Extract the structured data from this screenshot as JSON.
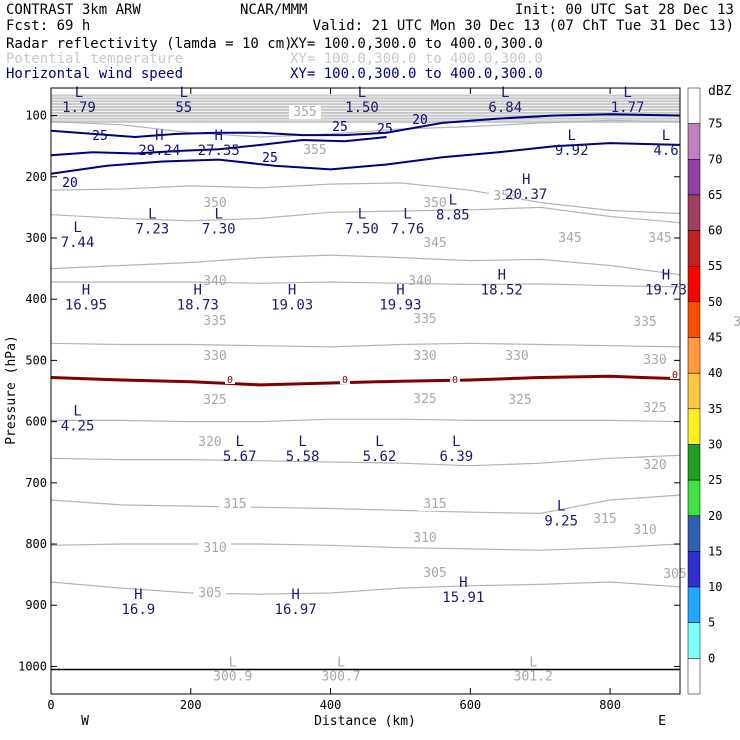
{
  "header": {
    "line1_left": "CONTRAST  3km ARW",
    "line1_mid": "NCAR/MMM",
    "line1_right": "Init: 00 UTC Sat 28 Dec 13",
    "line2_left": "Fcst:   69 h",
    "line2_right": "Valid: 21 UTC Mon 30 Dec 13 (07 ChT Tue 31 Dec 13)",
    "fields": [
      {
        "name": "Radar reflectivity (lamda = 10 cm)",
        "xy": "XY= 100.0,300.0 to 400.0,300.0",
        "color": "#000000"
      },
      {
        "name": "Potential temperature",
        "xy": "XY= 100.0,300.0 to 400.0,300.0",
        "color": "#c8c8c8"
      },
      {
        "name": "Horizontal wind speed",
        "xy": "XY= 100.0,300.0 to 400.0,300.0",
        "color": "#000080"
      }
    ]
  },
  "colors": {
    "theta": "#b4b4b4",
    "theta_label": "#a8a8a8",
    "wind": "#000080",
    "zero_wind": "#800000",
    "hilo": "#1a1a70",
    "axis": "#000000"
  },
  "chart_data": {
    "type": "cross-section",
    "xlabel": "Distance (km)",
    "ylabel": "Pressure (hPa)",
    "xlim": [
      0,
      900
    ],
    "ylim": [
      1045,
      55
    ],
    "x_ticks": [
      0,
      200,
      400,
      600,
      800
    ],
    "y_ticks": [
      100,
      200,
      300,
      400,
      500,
      600,
      700,
      800,
      900,
      1000
    ],
    "x_ends": {
      "left": "W",
      "right": "E"
    },
    "theta_contours": [
      {
        "label": "355",
        "points": [
          [
            0,
            110
          ],
          [
            100,
            115
          ],
          [
            200,
            128
          ],
          [
            300,
            135
          ],
          [
            400,
            130
          ],
          [
            500,
            122
          ],
          [
            600,
            118
          ],
          [
            700,
            112
          ],
          [
            800,
            108
          ],
          [
            900,
            110
          ]
        ],
        "labels_at": [
          [
            305,
            114
          ],
          [
            315,
            152
          ]
        ]
      },
      {
        "label": "350",
        "points": [
          [
            0,
            222
          ],
          [
            100,
            220
          ],
          [
            200,
            215
          ],
          [
            300,
            218
          ],
          [
            400,
            212
          ],
          [
            500,
            210
          ],
          [
            600,
            222
          ],
          [
            700,
            242
          ],
          [
            800,
            255
          ],
          [
            900,
            260
          ]
        ],
        "labels_at": [
          [
            215,
            205
          ],
          [
            435,
            205
          ],
          [
            505,
            198
          ]
        ]
      },
      {
        "label": "345",
        "points": [
          [
            0,
            262
          ],
          [
            100,
            268
          ],
          [
            200,
            272
          ],
          [
            300,
            268
          ],
          [
            400,
            258
          ],
          [
            500,
            256
          ],
          [
            600,
            254
          ],
          [
            700,
            250
          ],
          [
            800,
            265
          ],
          [
            900,
            275
          ]
        ],
        "labels_at": [
          [
            435,
            245
          ],
          [
            570,
            240
          ],
          [
            660,
            240
          ]
        ]
      },
      {
        "label": "340",
        "points": [
          [
            0,
            350
          ],
          [
            100,
            345
          ],
          [
            200,
            340
          ],
          [
            300,
            332
          ],
          [
            400,
            328
          ],
          [
            500,
            332
          ],
          [
            600,
            337
          ],
          [
            700,
            335
          ],
          [
            800,
            345
          ],
          [
            900,
            360
          ]
        ],
        "labels_at": [
          [
            215,
            283
          ],
          [
            420,
            283
          ]
        ]
      },
      {
        "label": "335",
        "points": [
          [
            0,
            372
          ],
          [
            100,
            372
          ],
          [
            200,
            372
          ],
          [
            300,
            374
          ],
          [
            400,
            372
          ],
          [
            500,
            374
          ],
          [
            600,
            376
          ],
          [
            700,
            375
          ],
          [
            800,
            378
          ],
          [
            900,
            380
          ]
        ],
        "labels_at": [
          [
            215,
            323
          ],
          [
            425,
            321
          ],
          [
            645,
            324
          ],
          [
            745,
            324
          ]
        ]
      },
      {
        "label": "330",
        "points": [
          [
            0,
            472
          ],
          [
            100,
            474
          ],
          [
            200,
            474
          ],
          [
            300,
            476
          ],
          [
            400,
            478
          ],
          [
            500,
            474
          ],
          [
            600,
            472
          ],
          [
            700,
            474
          ],
          [
            800,
            476
          ],
          [
            900,
            478
          ]
        ],
        "labels_at": [
          [
            215,
            358
          ],
          [
            425,
            358
          ],
          [
            517,
            358
          ],
          [
            655,
            362
          ]
        ]
      },
      {
        "label": "325",
        "points": [
          [
            0,
            598
          ],
          [
            100,
            598
          ],
          [
            200,
            600
          ],
          [
            300,
            600
          ],
          [
            400,
            596
          ],
          [
            500,
            596
          ],
          [
            600,
            598
          ],
          [
            700,
            598
          ],
          [
            800,
            598
          ],
          [
            900,
            600
          ]
        ],
        "labels_at": [
          [
            215,
            402
          ],
          [
            425,
            401
          ],
          [
            520,
            402
          ],
          [
            655,
            410
          ]
        ]
      },
      {
        "label": "320",
        "points": [
          [
            0,
            660
          ],
          [
            100,
            662
          ],
          [
            200,
            662
          ],
          [
            300,
            664
          ],
          [
            400,
            666
          ],
          [
            500,
            668
          ],
          [
            600,
            672
          ],
          [
            700,
            668
          ],
          [
            800,
            660
          ],
          [
            900,
            655
          ]
        ],
        "labels_at": [
          [
            210,
            444
          ],
          [
            655,
            467
          ],
          [
            845,
            455
          ]
        ]
      },
      {
        "label": "315",
        "points": [
          [
            0,
            728
          ],
          [
            100,
            736
          ],
          [
            200,
            738
          ],
          [
            300,
            740
          ],
          [
            400,
            742
          ],
          [
            500,
            745
          ],
          [
            600,
            748
          ],
          [
            700,
            750
          ],
          [
            800,
            728
          ],
          [
            900,
            720
          ]
        ],
        "labels_at": [
          [
            235,
            506
          ],
          [
            435,
            506
          ],
          [
            605,
            521
          ],
          [
            775,
            492
          ]
        ]
      },
      {
        "label": "310",
        "points": [
          [
            0,
            802
          ],
          [
            100,
            800
          ],
          [
            200,
            800
          ],
          [
            300,
            800
          ],
          [
            400,
            802
          ],
          [
            500,
            806
          ],
          [
            600,
            808
          ],
          [
            700,
            810
          ],
          [
            800,
            806
          ],
          [
            900,
            800
          ]
        ],
        "labels_at": [
          [
            215,
            550
          ],
          [
            425,
            540
          ],
          [
            645,
            532
          ],
          [
            765,
            525
          ]
        ]
      },
      {
        "label": "305",
        "points": [
          [
            0,
            862
          ],
          [
            100,
            872
          ],
          [
            200,
            880
          ],
          [
            300,
            882
          ],
          [
            400,
            880
          ],
          [
            500,
            872
          ],
          [
            600,
            868
          ],
          [
            700,
            866
          ],
          [
            800,
            862
          ],
          [
            900,
            870
          ]
        ],
        "labels_at": [
          [
            210,
            595
          ],
          [
            435,
            575
          ],
          [
            675,
            576
          ],
          [
            785,
            578
          ]
        ]
      }
    ],
    "zero_wind": {
      "label": "0",
      "points": [
        [
          0,
          528
        ],
        [
          100,
          532
        ],
        [
          200,
          535
        ],
        [
          300,
          540
        ],
        [
          400,
          537
        ],
        [
          500,
          534
        ],
        [
          600,
          532
        ],
        [
          700,
          528
        ],
        [
          800,
          526
        ],
        [
          900,
          530
        ]
      ],
      "labels_at": [
        [
          230,
          380
        ],
        [
          345,
          380
        ],
        [
          455,
          380
        ],
        [
          675,
          375
        ]
      ]
    },
    "wind_contours": [
      {
        "label": "20",
        "points": [
          [
            0,
            195
          ],
          [
            80,
            182
          ],
          [
            160,
            175
          ],
          [
            240,
            172
          ],
          [
            320,
            182
          ],
          [
            400,
            188
          ],
          [
            480,
            180
          ],
          [
            560,
            168
          ],
          [
            640,
            160
          ],
          [
            720,
            150
          ],
          [
            800,
            145
          ],
          [
            900,
            148
          ]
        ],
        "labels_at": [
          [
            70,
            187
          ],
          [
            420,
            124
          ]
        ]
      },
      {
        "label": "25",
        "points": [
          [
            0,
            165
          ],
          [
            60,
            160
          ],
          [
            120,
            162
          ],
          [
            180,
            158
          ],
          [
            240,
            155
          ],
          [
            300,
            148
          ],
          [
            360,
            140
          ],
          [
            420,
            142
          ],
          [
            480,
            135
          ]
        ],
        "labels_at": [
          [
            100,
            140
          ],
          [
            270,
            162
          ],
          [
            340,
            131
          ],
          [
            385,
            133
          ]
        ]
      },
      {
        "label": "",
        "points": [
          [
            0,
            125
          ],
          [
            60,
            130
          ],
          [
            120,
            135
          ],
          [
            180,
            130
          ],
          [
            240,
            128
          ],
          [
            300,
            128
          ],
          [
            360,
            132
          ],
          [
            420,
            132
          ],
          [
            480,
            128
          ],
          [
            560,
            112
          ],
          [
            640,
            105
          ],
          [
            720,
            100
          ],
          [
            800,
            98
          ],
          [
            900,
            100
          ]
        ],
        "labels_at": []
      }
    ],
    "reflectivity_band": {
      "top_hPa": 65,
      "bottom_hPa": 112
    },
    "wind_extrema": [
      {
        "type": "L",
        "value": "1.79",
        "x": 40,
        "p": 70
      },
      {
        "type": "L",
        "value": "55",
        "x": 190,
        "p": 70
      },
      {
        "type": "L",
        "value": "1.50",
        "x": 445,
        "p": 70
      },
      {
        "type": "L",
        "value": "6.84",
        "x": 650,
        "p": 70
      },
      {
        "type": "L",
        "value": "1.77",
        "x": 825,
        "p": 70
      },
      {
        "type": "H",
        "value": "29.24",
        "x": 155,
        "p": 140
      },
      {
        "type": "H",
        "value": "27.35",
        "x": 240,
        "p": 140
      },
      {
        "type": "L",
        "value": "9.92",
        "x": 745,
        "p": 140
      },
      {
        "type": "L",
        "value": "4.6",
        "x": 880,
        "p": 140
      },
      {
        "type": "H",
        "value": "20.37",
        "x": 680,
        "p": 212
      },
      {
        "type": "L",
        "value": "8.85",
        "x": 575,
        "p": 245
      },
      {
        "type": "L",
        "value": "7.23",
        "x": 145,
        "p": 268
      },
      {
        "type": "L",
        "value": "7.30",
        "x": 240,
        "p": 268
      },
      {
        "type": "L",
        "value": "7.50",
        "x": 445,
        "p": 268
      },
      {
        "type": "L",
        "value": "7.76",
        "x": 510,
        "p": 268
      },
      {
        "type": "L",
        "value": "7.44",
        "x": 38,
        "p": 290
      },
      {
        "type": "H",
        "value": "18.52",
        "x": 645,
        "p": 368
      },
      {
        "type": "H",
        "value": "19.73",
        "x": 880,
        "p": 368
      },
      {
        "type": "H",
        "value": "16.95",
        "x": 50,
        "p": 392
      },
      {
        "type": "H",
        "value": "18.73",
        "x": 210,
        "p": 392
      },
      {
        "type": "H",
        "value": "19.03",
        "x": 345,
        "p": 392
      },
      {
        "type": "H",
        "value": "19.93",
        "x": 500,
        "p": 392
      },
      {
        "type": "L",
        "value": "4.25",
        "x": 38,
        "p": 590
      },
      {
        "type": "L",
        "value": "5.67",
        "x": 270,
        "p": 640
      },
      {
        "type": "L",
        "value": "5.58",
        "x": 360,
        "p": 640
      },
      {
        "type": "L",
        "value": "5.62",
        "x": 470,
        "p": 640
      },
      {
        "type": "L",
        "value": "6.39",
        "x": 580,
        "p": 640
      },
      {
        "type": "L",
        "value": "9.25",
        "x": 730,
        "p": 745
      },
      {
        "type": "H",
        "value": "15.91",
        "x": 590,
        "p": 870
      },
      {
        "type": "H",
        "value": "16.9",
        "x": 125,
        "p": 890
      },
      {
        "type": "H",
        "value": "16.97",
        "x": 350,
        "p": 890
      }
    ],
    "theta_extrema": [
      {
        "type": "L",
        "value": "300.9",
        "x": 260,
        "p": 1000
      },
      {
        "type": "L",
        "value": "300.7",
        "x": 415,
        "p": 1000
      },
      {
        "type": "L",
        "value": "301.2",
        "x": 690,
        "p": 1000
      }
    ],
    "colorbar": {
      "unit": "dBZ",
      "levels": [
        "75",
        "70",
        "65",
        "60",
        "55",
        "50",
        "45",
        "40",
        "35",
        "30",
        "25",
        "20",
        "15",
        "10",
        "5",
        "0"
      ],
      "colors": [
        "#ffffff",
        "#c080c0",
        "#9040a0",
        "#a04060",
        "#c02020",
        "#ff0000",
        "#ff5000",
        "#ff9a40",
        "#ffc840",
        "#ffee20",
        "#20a020",
        "#40e040",
        "#3060b0",
        "#3030d0",
        "#20a8ff",
        "#80ffff",
        "#ffffff"
      ]
    }
  }
}
